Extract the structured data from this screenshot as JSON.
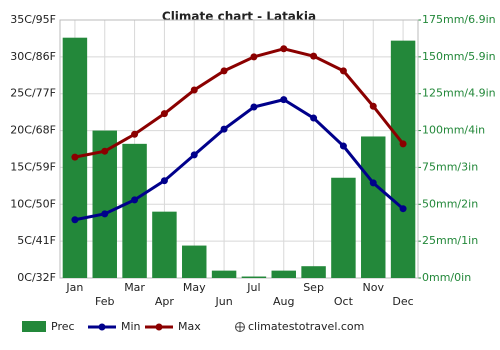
{
  "chart_data": {
    "type": "bar_line",
    "title": "Climate chart - Latakia",
    "categories": [
      "Jan",
      "Feb",
      "Mar",
      "Apr",
      "May",
      "Jun",
      "Jul",
      "Aug",
      "Sep",
      "Oct",
      "Nov",
      "Dec"
    ],
    "series": [
      {
        "name": "Prec",
        "type": "bar",
        "axis": "y2",
        "color": "#23883a",
        "values": [
          163,
          100,
          91,
          45,
          22,
          5,
          1,
          5,
          8,
          68,
          96,
          161
        ]
      },
      {
        "name": "Min",
        "type": "line",
        "color": "#00008b",
        "values": [
          7.9,
          8.7,
          10.6,
          13.2,
          16.7,
          20.2,
          23.2,
          24.2,
          21.7,
          17.9,
          12.9,
          9.4
        ]
      },
      {
        "name": "Max",
        "type": "line",
        "color": "#8b0000",
        "values": [
          16.4,
          17.2,
          19.5,
          22.3,
          25.5,
          28.1,
          30.0,
          31.1,
          30.1,
          28.1,
          23.3,
          18.2
        ]
      }
    ],
    "ylim": [
      0,
      35
    ],
    "yticks": [
      {
        "value": 0,
        "label": "0C/32F"
      },
      {
        "value": 5,
        "label": "5C/41F"
      },
      {
        "value": 10,
        "label": "10C/50F"
      },
      {
        "value": 15,
        "label": "15C/59F"
      },
      {
        "value": 20,
        "label": "20C/68F"
      },
      {
        "value": 25,
        "label": "25C/77F"
      },
      {
        "value": 30,
        "label": "30C/86F"
      },
      {
        "value": 35,
        "label": "35C/95F"
      }
    ],
    "y2lim": [
      0,
      175
    ],
    "y2ticks": [
      {
        "value": 0,
        "label": "0mm/0in"
      },
      {
        "value": 25,
        "label": "25mm/1in"
      },
      {
        "value": 50,
        "label": "50mm/2in"
      },
      {
        "value": 75,
        "label": "75mm/3in"
      },
      {
        "value": 100,
        "label": "100mm/4in"
      },
      {
        "value": 125,
        "label": "125mm/4.9in"
      },
      {
        "value": 150,
        "label": "150mm/5.9in"
      },
      {
        "value": 175,
        "label": "175mm/6.9in"
      }
    ],
    "grid": true,
    "source": "climatestotravel.com"
  }
}
